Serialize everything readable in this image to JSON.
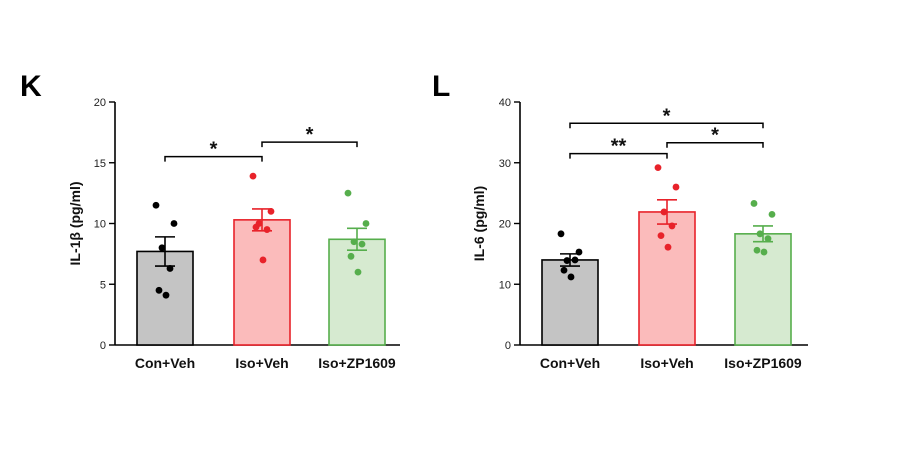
{
  "chart_data": [
    {
      "panel": "K",
      "type": "bar",
      "ylabel": "IL-1β (pg/ml)",
      "ylim": [
        0,
        20
      ],
      "yticks": [
        0,
        5,
        10,
        15,
        20
      ],
      "categories": [
        "Con+Veh",
        "Iso+Veh",
        "Iso+ZP1609"
      ],
      "series": [
        {
          "values": [
            7.7,
            10.3,
            8.7
          ],
          "error": [
            1.2,
            0.9,
            0.9
          ],
          "points": [
            [
              11.5,
              10.0,
              8.0,
              6.3,
              4.5,
              4.1
            ],
            [
              13.9,
              11.0,
              10.0,
              9.5,
              9.7,
              7.0
            ],
            [
              12.5,
              10.0,
              8.5,
              8.3,
              7.3,
              6.0
            ]
          ]
        }
      ],
      "colors": {
        "fill": [
          "#c4c4c4",
          "#fbbbbb",
          "#d6ead0"
        ],
        "edge": [
          "#000000",
          "#e8222a",
          "#56ae4c"
        ],
        "dot": [
          "#000000",
          "#e8222a",
          "#56ae4c"
        ]
      },
      "significance": [
        {
          "from": 0,
          "to": 1,
          "value": 15.5,
          "label": "*"
        },
        {
          "from": 1,
          "to": 2,
          "value": 16.7,
          "label": "*"
        }
      ]
    },
    {
      "panel": "L",
      "type": "bar",
      "ylabel": "IL-6 (pg/ml)",
      "ylim": [
        0,
        40
      ],
      "yticks": [
        0,
        10,
        20,
        30,
        40
      ],
      "categories": [
        "Con+Veh",
        "Iso+Veh",
        "Iso+ZP1609"
      ],
      "series": [
        {
          "values": [
            14.0,
            21.9,
            18.3
          ],
          "error": [
            1.0,
            2.0,
            1.3
          ],
          "points": [
            [
              18.3,
              15.3,
              13.9,
              14.0,
              12.3,
              11.2
            ],
            [
              29.2,
              26.0,
              21.9,
              19.6,
              18.0,
              16.1
            ],
            [
              23.3,
              21.5,
              18.3,
              17.5,
              15.6,
              15.3
            ]
          ]
        }
      ],
      "colors": {
        "fill": [
          "#c4c4c4",
          "#fbbbbb",
          "#d6ead0"
        ],
        "edge": [
          "#000000",
          "#e8222a",
          "#56ae4c"
        ],
        "dot": [
          "#000000",
          "#e8222a",
          "#56ae4c"
        ]
      },
      "significance": [
        {
          "from": 0,
          "to": 1,
          "value": 31.5,
          "label": "**"
        },
        {
          "from": 1,
          "to": 2,
          "value": 33.3,
          "label": "*"
        },
        {
          "from": 0,
          "to": 2,
          "value": 36.5,
          "label": "*"
        }
      ]
    }
  ]
}
